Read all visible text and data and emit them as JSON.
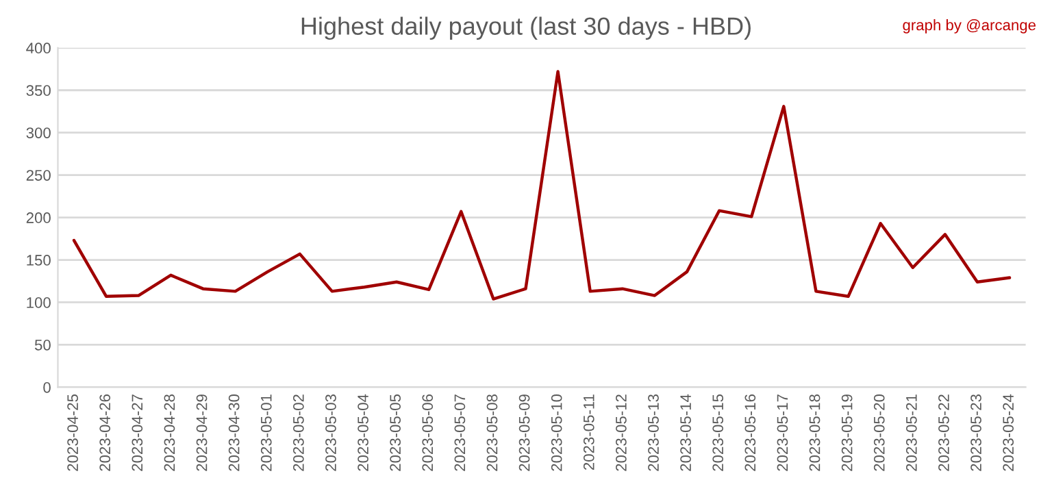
{
  "chart_data": {
    "type": "line",
    "title": "Highest daily payout (last 30 days - HBD)",
    "annotations": [
      "graph by @arcange"
    ],
    "categories": [
      "2023-04-25",
      "2023-04-26",
      "2023-04-27",
      "2023-04-28",
      "2023-04-29",
      "2023-04-30",
      "2023-05-01",
      "2023-05-02",
      "2023-05-03",
      "2023-05-04",
      "2023-05-05",
      "2023-05-06",
      "2023-05-07",
      "2023-05-08",
      "2023-05-09",
      "2023-05-10",
      "2023-05-11",
      "2023-05-12",
      "2023-05-13",
      "2023-05-14",
      "2023-05-15",
      "2023-05-16",
      "2023-05-17",
      "2023-05-18",
      "2023-05-19",
      "2023-05-20",
      "2023-05-21",
      "2023-05-22",
      "2023-05-23",
      "2023-05-24"
    ],
    "series": [
      {
        "color": "#a00000",
        "values": [
          173,
          107,
          108,
          132,
          116,
          113,
          136,
          157,
          113,
          118,
          124,
          115,
          207,
          104,
          116,
          372,
          113,
          116,
          108,
          136,
          208,
          201,
          331,
          113,
          107,
          193,
          141,
          180,
          124,
          129
        ]
      }
    ],
    "ylim": [
      0,
      400
    ],
    "yticks": [
      0,
      50,
      100,
      150,
      200,
      250,
      300,
      350,
      400
    ],
    "grid": "y",
    "marker": "none",
    "line_style": "solid",
    "legend": false
  }
}
